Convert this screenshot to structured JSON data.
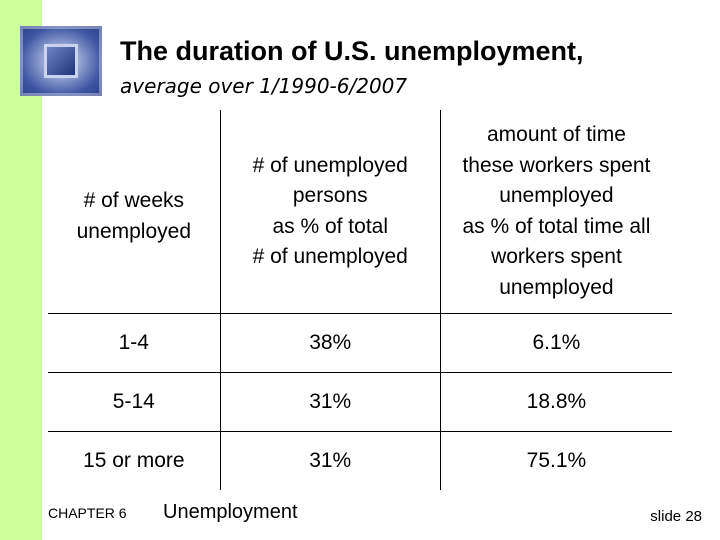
{
  "slide": {
    "title": "The duration of U.S. unemployment,",
    "subtitle": "average over 1/1990-6/2007"
  },
  "table": {
    "headers": [
      [
        "# of weeks",
        "unemployed"
      ],
      [
        "# of unemployed",
        "persons",
        "as % of total",
        "# of unemployed"
      ],
      [
        "amount of time",
        "these workers spent",
        "unemployed",
        "as % of total time all",
        "workers spent",
        "unemployed"
      ]
    ],
    "rows": [
      [
        "1-4",
        "38%",
        "6.1%"
      ],
      [
        "5-14",
        "31%",
        "18.8%"
      ],
      [
        "15 or more",
        "31%",
        "75.1%"
      ]
    ]
  },
  "footer": {
    "chapter": "CHAPTER 6",
    "topic": "Unemployment",
    "slide_number": "slide 28"
  },
  "colors": {
    "side_bar": "#ccff99",
    "logo": "#3e56a3"
  }
}
